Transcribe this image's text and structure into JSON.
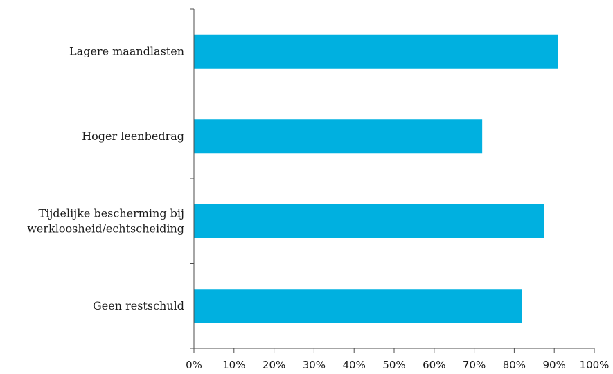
{
  "chart_data": {
    "type": "bar",
    "orientation": "horizontal",
    "categories": [
      "Lagere maandlasten",
      "Hoger leenbedrag",
      "Tijdelijke bescherming bij werkloosheid/echtscheiding",
      "Geen restschuld"
    ],
    "category_lines": [
      [
        "Lagere maandlasten"
      ],
      [
        "Hoger leenbedrag"
      ],
      [
        "Tijdelijke bescherming bij",
        "werkloosheid/echtscheiding"
      ],
      [
        "Geen restschuld"
      ]
    ],
    "values": [
      91,
      72,
      87.5,
      82
    ],
    "xlim": [
      0,
      100
    ],
    "xticks": [
      "0%",
      "10%",
      "20%",
      "30%",
      "40%",
      "50%",
      "60%",
      "70%",
      "80%",
      "90%",
      "100%"
    ],
    "bar_color": "#00b0e0",
    "title": "",
    "xlabel": "",
    "ylabel": "",
    "grid": false,
    "legend": "none"
  }
}
